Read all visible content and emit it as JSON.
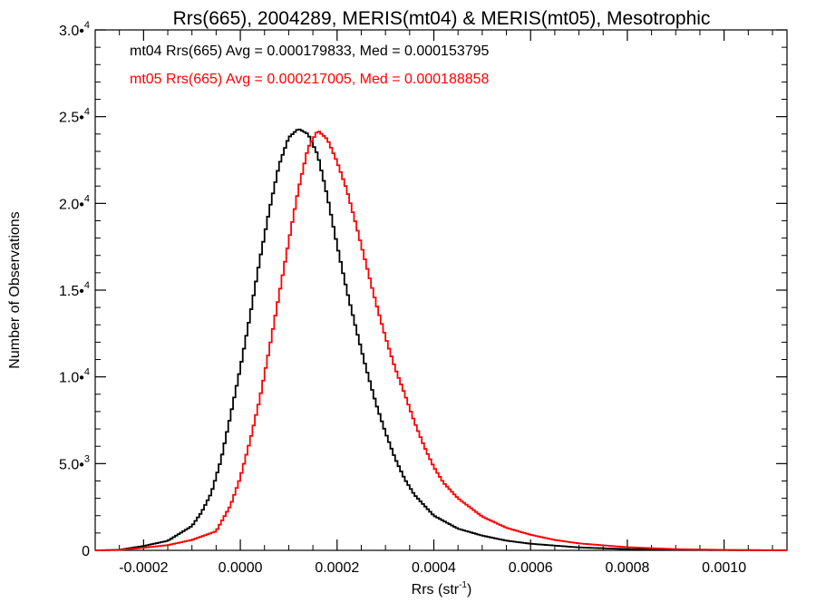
{
  "chart_data": {
    "type": "line",
    "title": "Rrs(665), 2004289, MERIS(mt04) & MERIS(mt05), Mesotrophic",
    "xlabel_base": "Rrs (str",
    "xlabel_sup": "-1",
    "xlabel_close": ")",
    "ylabel": "Number of Observations",
    "xlim": [
      -0.0003,
      0.00113
    ],
    "ylim": [
      0,
      30000
    ],
    "x_ticks": [
      {
        "value": -0.0002,
        "label": "-0.0002"
      },
      {
        "value": 0.0,
        "label": "0.0000"
      },
      {
        "value": 0.0002,
        "label": "0.0002"
      },
      {
        "value": 0.0004,
        "label": "0.0004"
      },
      {
        "value": 0.0006,
        "label": "0.0006"
      },
      {
        "value": 0.0008,
        "label": "0.0008"
      },
      {
        "value": 0.001,
        "label": "0.0010"
      }
    ],
    "y_ticks": [
      {
        "value": 0,
        "mant": "0",
        "exp": ""
      },
      {
        "value": 5000,
        "mant": "5.0•",
        "exp": "3"
      },
      {
        "value": 10000,
        "mant": "1.0•",
        "exp": "4"
      },
      {
        "value": 15000,
        "mant": "1.5•",
        "exp": "4"
      },
      {
        "value": 20000,
        "mant": "2.0•",
        "exp": "4"
      },
      {
        "value": 25000,
        "mant": "2.5•",
        "exp": "4"
      },
      {
        "value": 30000,
        "mant": "3.0•",
        "exp": "4"
      }
    ],
    "legend": {
      "mt04": "mt04 Rrs(665) Avg = 0.000179833, Med = 0.000153795",
      "mt05": "mt05 Rrs(665) Avg = 0.000217005, Med = 0.000188858"
    },
    "series": [
      {
        "key": "mt04",
        "color": "#000000",
        "points": [
          [
            -0.0003,
            0
          ],
          [
            -0.00025,
            30
          ],
          [
            -0.0002,
            250
          ],
          [
            -0.00015,
            550
          ],
          [
            -0.0001,
            1400
          ],
          [
            -8e-05,
            2200
          ],
          [
            -6e-05,
            3300
          ],
          [
            -4e-05,
            5200
          ],
          [
            -2e-05,
            7800
          ],
          [
            0.0,
            10500
          ],
          [
            2e-05,
            13500
          ],
          [
            4e-05,
            16700
          ],
          [
            6e-05,
            19600
          ],
          [
            8e-05,
            22200
          ],
          [
            0.0001,
            23800
          ],
          [
            0.00012,
            24300
          ],
          [
            0.00014,
            24000
          ],
          [
            0.00016,
            22800
          ],
          [
            0.00018,
            20400
          ],
          [
            0.0002,
            17600
          ],
          [
            0.00022,
            15000
          ],
          [
            0.00024,
            12700
          ],
          [
            0.00026,
            10500
          ],
          [
            0.00028,
            8500
          ],
          [
            0.0003,
            6800
          ],
          [
            0.00032,
            5300
          ],
          [
            0.00034,
            4100
          ],
          [
            0.00036,
            3200
          ],
          [
            0.0004,
            2000
          ],
          [
            0.00045,
            1250
          ],
          [
            0.0005,
            850
          ],
          [
            0.00055,
            560
          ],
          [
            0.0006,
            380
          ],
          [
            0.0007,
            170
          ],
          [
            0.0008,
            70
          ],
          [
            0.0009,
            30
          ],
          [
            0.001,
            12
          ],
          [
            0.00113,
            4
          ]
        ]
      },
      {
        "key": "mt05",
        "color": "#ff0000",
        "points": [
          [
            -0.0003,
            0
          ],
          [
            -0.00025,
            20
          ],
          [
            -0.0002,
            150
          ],
          [
            -0.00015,
            300
          ],
          [
            -0.0001,
            600
          ],
          [
            -5e-05,
            1100
          ],
          [
            -2e-05,
            2600
          ],
          [
            0.0,
            4200
          ],
          [
            2e-05,
            6300
          ],
          [
            4e-05,
            8700
          ],
          [
            6e-05,
            11600
          ],
          [
            8e-05,
            14700
          ],
          [
            0.0001,
            17800
          ],
          [
            0.00012,
            20800
          ],
          [
            0.00014,
            23200
          ],
          [
            0.00016,
            24200
          ],
          [
            0.00018,
            23700
          ],
          [
            0.0002,
            22400
          ],
          [
            0.00022,
            20800
          ],
          [
            0.00024,
            18700
          ],
          [
            0.00026,
            16500
          ],
          [
            0.00028,
            14300
          ],
          [
            0.0003,
            12300
          ],
          [
            0.00032,
            10500
          ],
          [
            0.00034,
            9000
          ],
          [
            0.00036,
            7400
          ],
          [
            0.00038,
            6000
          ],
          [
            0.0004,
            4800
          ],
          [
            0.00042,
            3900
          ],
          [
            0.00045,
            3000
          ],
          [
            0.0005,
            1950
          ],
          [
            0.00055,
            1300
          ],
          [
            0.0006,
            900
          ],
          [
            0.00065,
            600
          ],
          [
            0.0007,
            400
          ],
          [
            0.0008,
            180
          ],
          [
            0.0009,
            70
          ],
          [
            0.001,
            25
          ],
          [
            0.00113,
            8
          ]
        ]
      }
    ]
  }
}
